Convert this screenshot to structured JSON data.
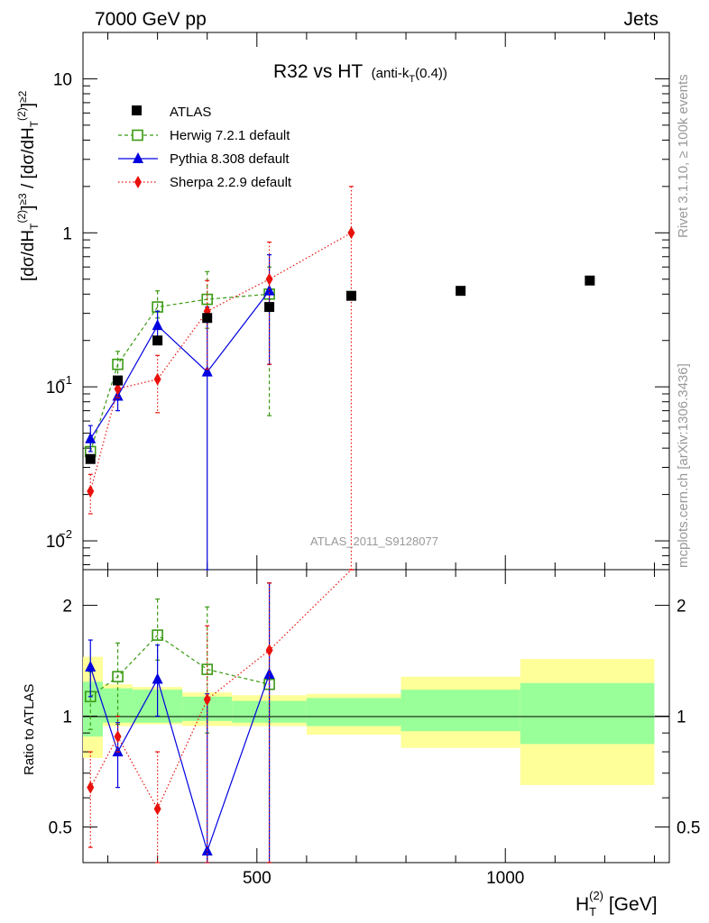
{
  "header": {
    "left": "7000 GeV pp",
    "right": "Jets"
  },
  "title": {
    "main": "R32 vs HT",
    "sub": "(anti-k",
    "sub_t": "T",
    "sub_end": "(0.4))"
  },
  "analysis_tag": "ATLAS_2011_S9128077",
  "side_labels": {
    "rivet": "Rivet 3.1.10, ≥ 100k events",
    "mcplots": "mcplots.cern.ch [arXiv:1306.3436]"
  },
  "axes": {
    "ylabel_top": "[dσ/dH_T^(2)]^≥3 / [dσ/dH_T^(2)]^≥2",
    "ylabel_bottom": "Ratio to ATLAS",
    "xlabel": "H_T^(2) [GeV]"
  },
  "colors": {
    "data": "#000000",
    "herwig": "#3a9a14",
    "pythia": "#0000e0",
    "sherpa": "#e8110b",
    "band_inner": "#99ff99",
    "band_outer": "#ffff99"
  },
  "chart_data": {
    "type": "scatter",
    "x_range": [
      150,
      1330
    ],
    "top_panel": {
      "yscale": "log",
      "ylim": [
        0.0065,
        20
      ],
      "y_ticks": [
        "10^-2",
        "10^-1",
        "1",
        "10"
      ],
      "legend_position": "top-left",
      "series": [
        {
          "name": "ATLAS",
          "marker": "square",
          "x": [
            165,
            220,
            300,
            400,
            525,
            690,
            910,
            1170
          ],
          "y": [
            0.034,
            0.11,
            0.2,
            0.28,
            0.33,
            0.39,
            0.42,
            0.49
          ]
        },
        {
          "name": "Herwig 7.2.1 default",
          "marker": "open-square",
          "line": "dashed",
          "x": [
            165,
            220,
            300,
            400,
            525
          ],
          "y": [
            0.038,
            0.14,
            0.33,
            0.37,
            0.4
          ],
          "err_low": [
            0.034,
            0.11,
            0.28,
            0.24,
            0.065
          ],
          "err_high": [
            0.044,
            0.17,
            0.42,
            0.56,
            0.6
          ]
        },
        {
          "name": "Pythia 8.308 default",
          "marker": "triangle",
          "line": "solid",
          "x": [
            165,
            220,
            300,
            400,
            525
          ],
          "y": [
            0.046,
            0.087,
            0.25,
            0.125,
            0.42
          ],
          "err_low": [
            0.038,
            0.07,
            0.2,
            0.0065,
            0.14
          ],
          "err_high": [
            0.056,
            0.105,
            0.31,
            0.33,
            0.72
          ]
        },
        {
          "name": "Sherpa 2.2.9 default",
          "marker": "diamond",
          "line": "dotted",
          "x": [
            165,
            220,
            300,
            400,
            525,
            690
          ],
          "y": [
            0.021,
            0.097,
            0.112,
            0.31,
            0.5,
            1.0
          ],
          "err_low": [
            0.015,
            0.085,
            0.068,
            0.13,
            0.14,
            0.0065
          ],
          "err_high": [
            0.027,
            0.11,
            0.16,
            0.49,
            0.87,
            2.0
          ]
        }
      ]
    },
    "ratio_panel": {
      "yscale": "log",
      "ylim": [
        0.4,
        2.5
      ],
      "y_ticks": [
        "0.5",
        "1",
        "2"
      ],
      "x_ticks": [
        "500",
        "1000"
      ],
      "bands": {
        "edges": [
          150,
          190,
          250,
          350,
          450,
          600,
          790,
          1030,
          1300
        ],
        "outer_low": [
          0.77,
          0.94,
          0.95,
          0.94,
          0.94,
          0.89,
          0.82,
          0.65
        ],
        "outer_high": [
          1.45,
          1.22,
          1.2,
          1.16,
          1.14,
          1.15,
          1.28,
          1.43
        ],
        "inner_low": [
          0.88,
          0.96,
          0.96,
          0.97,
          0.96,
          0.94,
          0.91,
          0.84
        ],
        "inner_high": [
          1.24,
          1.19,
          1.18,
          1.13,
          1.1,
          1.12,
          1.18,
          1.23
        ]
      },
      "series": [
        {
          "name": "Herwig 7.2.1 default",
          "x": [
            165,
            220,
            300,
            400,
            525
          ],
          "y": [
            1.13,
            1.28,
            1.66,
            1.34,
            1.22
          ],
          "err_low": [
            0.92,
            0.95,
            1.42,
            0.9,
            0.2
          ],
          "err_high": [
            1.32,
            1.58,
            2.08,
            1.98,
            2.3
          ]
        },
        {
          "name": "Pythia 8.308 default",
          "x": [
            165,
            220,
            300,
            400,
            525
          ],
          "y": [
            1.36,
            0.8,
            1.26,
            0.43,
            1.3
          ],
          "err_low": [
            1.13,
            0.64,
            1.0,
            0.3,
            0.3
          ],
          "err_high": [
            1.61,
            0.96,
            1.56,
            1.15,
            2.3
          ]
        },
        {
          "name": "Sherpa 2.2.9 default",
          "x": [
            165,
            220,
            300,
            400,
            525,
            690
          ],
          "y": [
            0.64,
            0.88,
            0.56,
            1.11,
            1.51,
            2.56
          ],
          "err_low": [
            0.44,
            0.8,
            0.35,
            0.4,
            0.3,
            2.56
          ],
          "err_high": [
            0.8,
            1.0,
            0.8,
            1.76,
            2.3,
            2.56
          ]
        }
      ]
    }
  }
}
